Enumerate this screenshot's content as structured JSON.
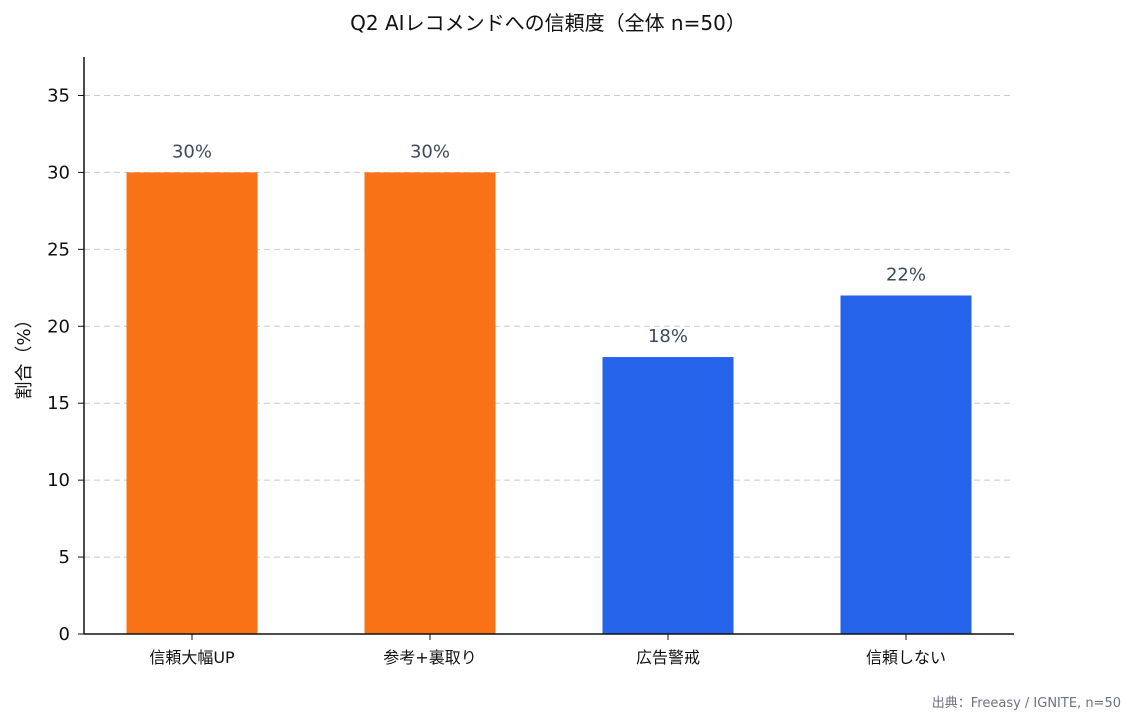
{
  "chart_data": {
    "type": "bar",
    "title": "Q2 AIレコメンドへの信頼度（全体 n=50）",
    "ylabel": "割合（%）",
    "xlabel": "",
    "categories": [
      "信頼大幅UP",
      "参考+裏取り",
      "広告警戒",
      "信頼しない"
    ],
    "values": [
      30,
      30,
      18,
      22
    ],
    "value_labels": [
      "30%",
      "30%",
      "18%",
      "22%"
    ],
    "colors": [
      "#f97316",
      "#f97316",
      "#2563eb",
      "#2563eb"
    ],
    "ylim": [
      0,
      37.5
    ],
    "yticks": [
      0,
      5,
      10,
      15,
      20,
      25,
      30,
      35
    ],
    "grid": true,
    "legend": "none"
  },
  "source": "出典：Freeasy / IGNITE, n=50"
}
